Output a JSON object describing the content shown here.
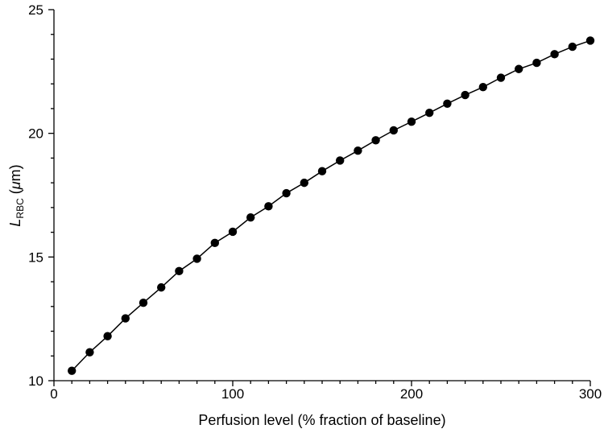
{
  "chart_data": {
    "type": "line",
    "title": "",
    "xlabel": "Perfusion level (% fraction of baseline)",
    "ylabel": {
      "main": "L",
      "subscript": "RBC",
      "unit_open": " (",
      "unit_mu": "μ",
      "unit_rest": "m)"
    },
    "xlim": [
      0,
      300
    ],
    "ylim": [
      10,
      25
    ],
    "xticks": [
      0,
      100,
      200,
      300
    ],
    "yticks": [
      10,
      15,
      20,
      25
    ],
    "x_minor_step": 10,
    "y_minor_step": 1,
    "grid": false,
    "legend": "none",
    "series": [
      {
        "color": "#000000",
        "marker": "circle",
        "x": [
          10,
          20,
          30,
          40,
          50,
          60,
          70,
          80,
          90,
          100,
          110,
          120,
          130,
          140,
          150,
          160,
          170,
          180,
          190,
          200,
          210,
          220,
          230,
          240,
          250,
          260,
          270,
          280,
          290,
          300
        ],
        "y": [
          10.4,
          11.15,
          11.8,
          12.52,
          13.15,
          13.77,
          14.43,
          14.93,
          15.57,
          16.02,
          16.6,
          17.05,
          17.58,
          18.0,
          18.47,
          18.9,
          19.3,
          19.72,
          20.12,
          20.47,
          20.83,
          21.2,
          21.55,
          21.87,
          22.25,
          22.6,
          22.85,
          23.2,
          23.5,
          23.75
        ]
      }
    ]
  }
}
